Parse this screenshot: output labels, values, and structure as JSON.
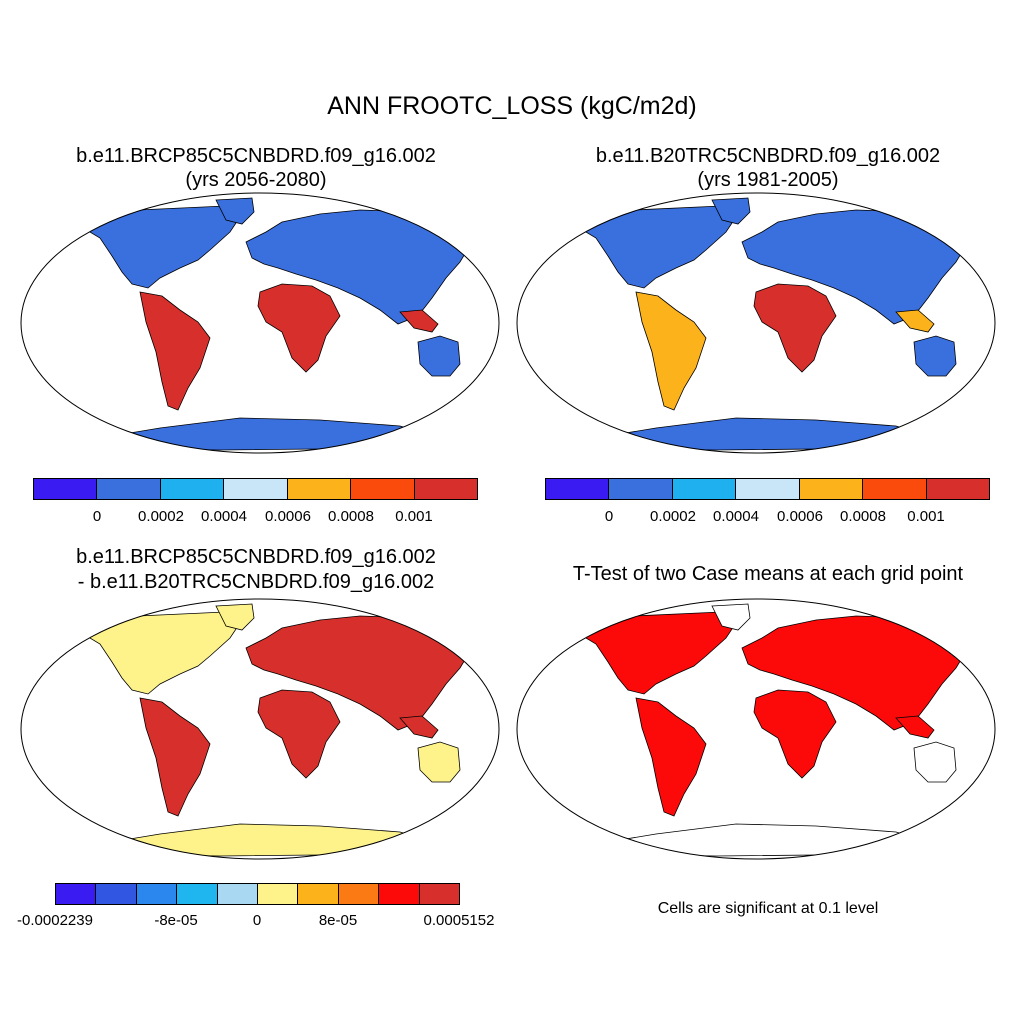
{
  "figure": {
    "title": "ANN FROOTC_LOSS (kgC/m2d)",
    "panels": [
      {
        "id": "case1",
        "title_line1": "b.e11.BRCP85C5CNBDRD.f09_g16.002",
        "title_line2": "(yrs 2056-2080)"
      },
      {
        "id": "case2",
        "title_line1": "b.e11.B20TRC5CNBDRD.f09_g16.002",
        "title_line2": "(yrs 1981-2005)"
      },
      {
        "id": "diff",
        "title_line1": "b.e11.BRCP85C5CNBDRD.f09_g16.002",
        "title_line2": "- b.e11.B20TRC5CNBDRD.f09_g16.002"
      },
      {
        "id": "ttest",
        "title_line1": "T-Test of two Case means at each grid point",
        "footnote": "Cells are significant at 0.1 level"
      }
    ],
    "colorbar_abs": {
      "colors": [
        "#3a1cf2",
        "#3a6fde",
        "#1fb0ef",
        "#c9e6f8",
        "#fcb21a",
        "#fa4a0c",
        "#d7302c"
      ],
      "labels": [
        "0",
        "0.0002",
        "0.0004",
        "0.0006",
        "0.0008",
        "0.001"
      ]
    },
    "colorbar_diff": {
      "colors": [
        "#3a1cf2",
        "#3156e2",
        "#2b86ee",
        "#1fb6ef",
        "#a9d8f2",
        "#fdf38a",
        "#fcb21a",
        "#fc7a14",
        "#fc0a0a",
        "#d7302c"
      ],
      "labels": [
        "-0.0002239",
        "-8e-05",
        "0",
        "8e-05",
        "0.0005152"
      ]
    },
    "colors": {
      "land_low": "#3a6fde",
      "land_mid": "#fcb21a",
      "land_high": "#d7302c",
      "diff_background": "#fdf38a",
      "significant": "#fc0a0a"
    }
  }
}
